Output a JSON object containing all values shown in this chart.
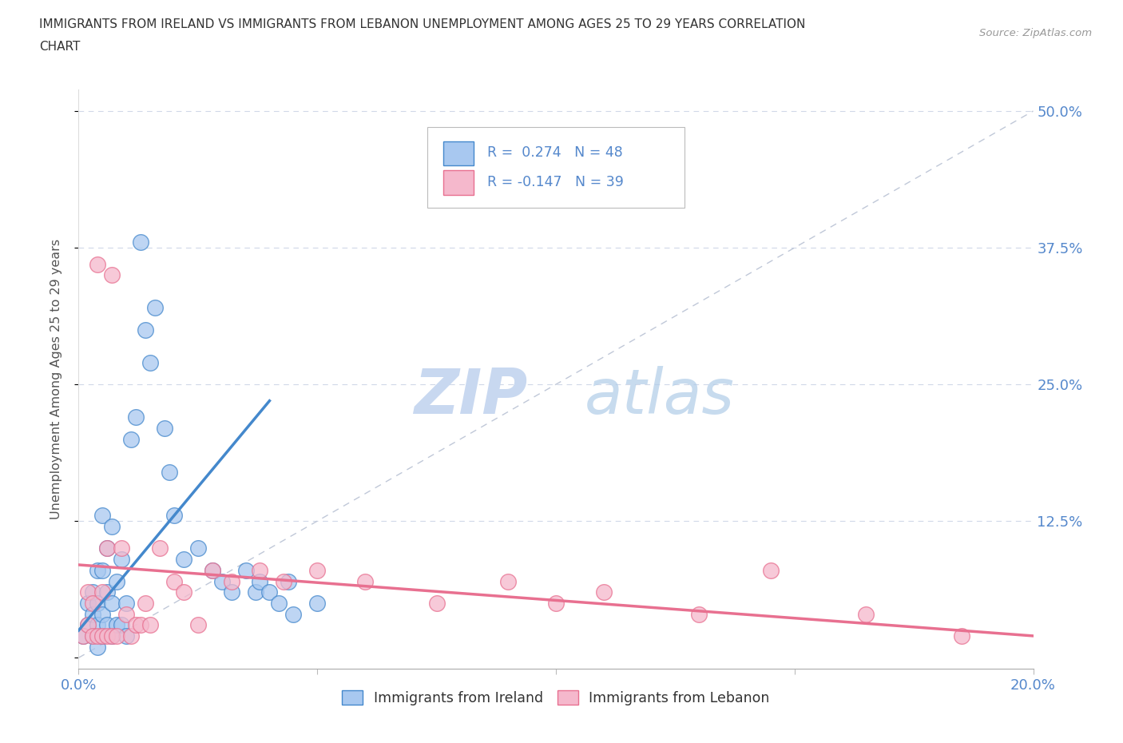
{
  "title_line1": "IMMIGRANTS FROM IRELAND VS IMMIGRANTS FROM LEBANON UNEMPLOYMENT AMONG AGES 25 TO 29 YEARS CORRELATION",
  "title_line2": "CHART",
  "source": "Source: ZipAtlas.com",
  "ylabel": "Unemployment Among Ages 25 to 29 years",
  "xlim": [
    0.0,
    0.2
  ],
  "ylim": [
    -0.01,
    0.52
  ],
  "ireland_R": 0.274,
  "ireland_N": 48,
  "lebanon_R": -0.147,
  "lebanon_N": 39,
  "ireland_color": "#a8c8f0",
  "lebanon_color": "#f5b8cc",
  "ireland_trend_color": "#4488cc",
  "lebanon_trend_color": "#e87090",
  "ref_line_color": "#c0c8d8",
  "grid_color": "#d0d8e8",
  "tick_color": "#5588cc",
  "watermark_zip_color": "#c8d8f0",
  "watermark_atlas_color": "#b0cce8",
  "ireland_x": [
    0.001,
    0.002,
    0.002,
    0.003,
    0.003,
    0.003,
    0.004,
    0.004,
    0.004,
    0.004,
    0.005,
    0.005,
    0.005,
    0.005,
    0.006,
    0.006,
    0.006,
    0.007,
    0.007,
    0.007,
    0.008,
    0.008,
    0.009,
    0.009,
    0.01,
    0.01,
    0.011,
    0.012,
    0.013,
    0.014,
    0.015,
    0.016,
    0.018,
    0.019,
    0.02,
    0.022,
    0.025,
    0.028,
    0.03,
    0.032,
    0.035,
    0.037,
    0.038,
    0.04,
    0.042,
    0.044,
    0.045,
    0.05
  ],
  "ireland_y": [
    0.02,
    0.03,
    0.05,
    0.02,
    0.04,
    0.06,
    0.01,
    0.03,
    0.05,
    0.08,
    0.02,
    0.04,
    0.08,
    0.13,
    0.03,
    0.06,
    0.1,
    0.02,
    0.05,
    0.12,
    0.03,
    0.07,
    0.03,
    0.09,
    0.02,
    0.05,
    0.2,
    0.22,
    0.38,
    0.3,
    0.27,
    0.32,
    0.21,
    0.17,
    0.13,
    0.09,
    0.1,
    0.08,
    0.07,
    0.06,
    0.08,
    0.06,
    0.07,
    0.06,
    0.05,
    0.07,
    0.04,
    0.05
  ],
  "ireland_trend_x": [
    0.0,
    0.04
  ],
  "ireland_trend_y": [
    0.025,
    0.235
  ],
  "lebanon_x": [
    0.001,
    0.002,
    0.002,
    0.003,
    0.003,
    0.004,
    0.004,
    0.005,
    0.005,
    0.006,
    0.006,
    0.007,
    0.007,
    0.008,
    0.009,
    0.01,
    0.011,
    0.012,
    0.013,
    0.014,
    0.015,
    0.017,
    0.02,
    0.022,
    0.025,
    0.028,
    0.032,
    0.038,
    0.043,
    0.05,
    0.06,
    0.075,
    0.09,
    0.1,
    0.11,
    0.13,
    0.145,
    0.165,
    0.185
  ],
  "lebanon_y": [
    0.02,
    0.03,
    0.06,
    0.02,
    0.05,
    0.02,
    0.36,
    0.02,
    0.06,
    0.02,
    0.1,
    0.35,
    0.02,
    0.02,
    0.1,
    0.04,
    0.02,
    0.03,
    0.03,
    0.05,
    0.03,
    0.1,
    0.07,
    0.06,
    0.03,
    0.08,
    0.07,
    0.08,
    0.07,
    0.08,
    0.07,
    0.05,
    0.07,
    0.05,
    0.06,
    0.04,
    0.08,
    0.04,
    0.02
  ],
  "lebanon_trend_x": [
    0.0,
    0.2
  ],
  "lebanon_trend_y": [
    0.085,
    0.02
  ]
}
